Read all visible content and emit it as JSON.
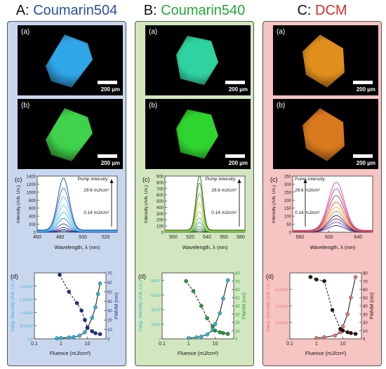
{
  "columns": [
    {
      "letter": "A:",
      "dye": "Coumarin504",
      "title_color": "#2d4fa3",
      "panel_bg": "#c9d7ee",
      "image_labels": [
        "(a)",
        "(b)"
      ],
      "scale_label": "200 µm",
      "glow_a": "#2fa6e8",
      "glow_b": "#3fd24a",
      "pump_label": "Pump intensity:",
      "pump_high": "29.6 mJ/cm²",
      "pump_low": "0.14 mJ/cm²",
      "fwhm_color": "#2a3a9a"
    },
    {
      "letter": "B:",
      "dye": "Coumarin540",
      "title_color": "#22a83a",
      "panel_bg": "#d2e7bf",
      "image_labels": [
        "(a)",
        "(b)"
      ],
      "scale_label": "200 µm",
      "glow_a": "#2fd3a0",
      "glow_b": "#30d42e",
      "pump_label": "Pump intensity:",
      "pump_high": "29.6 mJ/cm²",
      "pump_low": "0.14 mJ/cm²",
      "fwhm_color": "#24a84a"
    },
    {
      "letter": "C:",
      "dye": "DCM",
      "title_color": "#e02a2a",
      "panel_bg": "#f6c4c2",
      "image_labels": [
        "(a)",
        "(b)"
      ],
      "scale_label": "200 µm",
      "glow_a": "#e08f1c",
      "glow_b": "#d9791e",
      "pump_label": "Pump intensity:",
      "pump_high": "29.6 mJ/cm²",
      "pump_low": "0.14 mJ/cm²",
      "fwhm_color": "#c02020"
    }
  ],
  "chart_data": [
    {
      "panel": "A (c)",
      "type": "line",
      "label": "(c)",
      "xlabel": "Wavelength, λ (nm)",
      "ylabel": "Intensity (Arb. Un.)",
      "xlim": [
        460,
        530
      ],
      "ylim": [
        0,
        1400
      ],
      "xticks": [
        460,
        480,
        500,
        520
      ],
      "yticks": [
        0,
        200,
        400,
        600,
        800,
        1000,
        1200,
        1400
      ],
      "peak_x": 483,
      "width": 5,
      "peaks": [
        30,
        60,
        110,
        200,
        330,
        480,
        650,
        850,
        1060,
        1300
      ],
      "series_colors": [
        "#1a237e",
        "#283593",
        "#303f9f",
        "#3949ab",
        "#1e88e5",
        "#29b6f6",
        "#4dd0e1",
        "#4fc3f7",
        "#5c6bc0",
        "#0d47a1"
      ]
    },
    {
      "panel": "B (c)",
      "type": "line",
      "label": "(c)",
      "xlabel": "Wavelength, λ (nm)",
      "ylabel": "Intensity (Arb. Un.)",
      "xlim": [
        490,
        585
      ],
      "ylim": [
        0,
        900
      ],
      "xticks": [
        500,
        520,
        540,
        560,
        580
      ],
      "yticks": [
        0,
        100,
        200,
        300,
        400,
        500,
        600,
        700,
        800,
        900
      ],
      "peak_x": 531,
      "width": 4,
      "peaks": [
        20,
        50,
        90,
        150,
        220,
        320,
        450,
        600,
        760,
        880
      ],
      "series_colors": [
        "#1b5e20",
        "#2e7d32",
        "#388e3c",
        "#43a047",
        "#66bb6a",
        "#9ccc65",
        "#c0ca33",
        "#7cb342",
        "#558b2f",
        "#33691e"
      ]
    },
    {
      "panel": "C (c)",
      "type": "line",
      "label": "(c)",
      "xlabel": "Wavelength, λ (nm)",
      "ylabel": "Intensity (Arb. Un.)",
      "xlim": [
        550,
        660
      ],
      "ylim": [
        0,
        350
      ],
      "xticks": [
        560,
        600,
        640
      ],
      "yticks": [
        0,
        50,
        100,
        150,
        200,
        250,
        300,
        350
      ],
      "peak_x": 610,
      "width": 11,
      "peaks": [
        40,
        60,
        80,
        100,
        125,
        150,
        180,
        220,
        260,
        300
      ],
      "series_colors": [
        "#3f1f7a",
        "#5e35b1",
        "#7b1fa2",
        "#1a237e",
        "#e67e22",
        "#f5b041",
        "#e74c3c",
        "#c0392b",
        "#ab47bc",
        "#ec407a"
      ]
    },
    {
      "panel": "A (d)",
      "type": "scatter",
      "label": "(d)",
      "xlabel": "Fluence (mJ/cm²)",
      "ylabel": "Integ. Intensity (Arb. Un.)",
      "y2label": "FWHM (nm)",
      "xlim": [
        0.1,
        50
      ],
      "xscale": "log",
      "xticks": [
        0.1,
        1,
        10
      ],
      "ylim": [
        0,
        25000
      ],
      "yticks": [
        0,
        5000,
        10000,
        15000,
        20000
      ],
      "yticklabels": [
        "0.0",
        "5.0x10³",
        "1.0x10⁴",
        "1.5x10⁴",
        "2.0x10⁴"
      ],
      "y2lim": [
        0,
        70
      ],
      "y2ticks": [
        0,
        10,
        20,
        30,
        40,
        50,
        60,
        70
      ],
      "intensity": {
        "x": [
          0.7,
          1,
          2,
          3,
          5,
          8,
          10,
          15,
          20,
          25,
          30
        ],
        "y": [
          200,
          300,
          500,
          700,
          1200,
          2500,
          4000,
          8000,
          12000,
          17000,
          21000
        ]
      },
      "fwhm": {
        "x": [
          0.9,
          2,
          4,
          6,
          8,
          10,
          15,
          20,
          30
        ],
        "y": [
          68,
          50,
          38,
          30,
          20,
          12,
          8,
          6,
          5
        ]
      },
      "intensity_color": "#2ab5d8",
      "fwhm_color": "#1f2a8c"
    },
    {
      "panel": "B (d)",
      "type": "scatter",
      "label": "(d)",
      "xlabel": "Fluence (mJ/cm²)",
      "ylabel": "Integ. Intensity (Arb. Un.)",
      "y2label": "FWHM (nm)",
      "xlim": [
        0.1,
        50
      ],
      "xscale": "log",
      "xticks": [
        0.1,
        1,
        10
      ],
      "ylim": [
        0,
        9000
      ],
      "yticks": [
        0,
        2000,
        4000,
        6000,
        8000
      ],
      "yticklabels": [
        "0",
        "2x10³",
        "4x10³",
        "6x10³",
        "8x10³"
      ],
      "y2lim": [
        0,
        80
      ],
      "y2ticks": [
        0,
        10,
        20,
        30,
        40,
        50,
        60,
        70,
        80
      ],
      "intensity": {
        "x": [
          1,
          2,
          3,
          5,
          8,
          10,
          15,
          20,
          30
        ],
        "y": [
          100,
          200,
          300,
          600,
          1200,
          2000,
          3500,
          5500,
          8000
        ]
      },
      "fwhm": {
        "x": [
          0.8,
          1.5,
          3,
          5,
          8,
          10,
          15,
          20,
          30
        ],
        "y": [
          70,
          58,
          40,
          25,
          15,
          10,
          8,
          7,
          6
        ]
      },
      "intensity_color": "#2fb8c4",
      "fwhm_color": "#1f9a3c"
    },
    {
      "panel": "C (d)",
      "type": "scatter",
      "label": "(d)",
      "xlabel": "Fluence (mJ/cm²)",
      "ylabel": "Integ. Intensity (Arb. Un.)",
      "y2label": "FWHM (nm)",
      "xlim": [
        0.1,
        50
      ],
      "xscale": "log",
      "xticks": [
        0.1,
        1,
        10
      ],
      "ylim": [
        0,
        8000
      ],
      "yticks": [
        0,
        2000,
        4000,
        6000
      ],
      "yticklabels": [
        "0",
        "2.0x10³",
        "4.0x10³",
        "6.0x10³"
      ],
      "y2lim": [
        0,
        80
      ],
      "y2ticks": [
        0,
        10,
        20,
        30,
        40,
        50,
        60,
        70,
        80
      ],
      "intensity": {
        "x": [
          1,
          2,
          5,
          8,
          10,
          15,
          20,
          30
        ],
        "y": [
          100,
          200,
          400,
          800,
          1500,
          3000,
          5000,
          7500
        ]
      },
      "fwhm": {
        "x": [
          0.6,
          1,
          2,
          4,
          8,
          10,
          15,
          20,
          30
        ],
        "y": [
          75,
          72,
          70,
          35,
          12,
          10,
          8,
          7,
          6
        ]
      },
      "intensity_color": "#e8736a",
      "fwhm_color": "#2a1010"
    }
  ]
}
